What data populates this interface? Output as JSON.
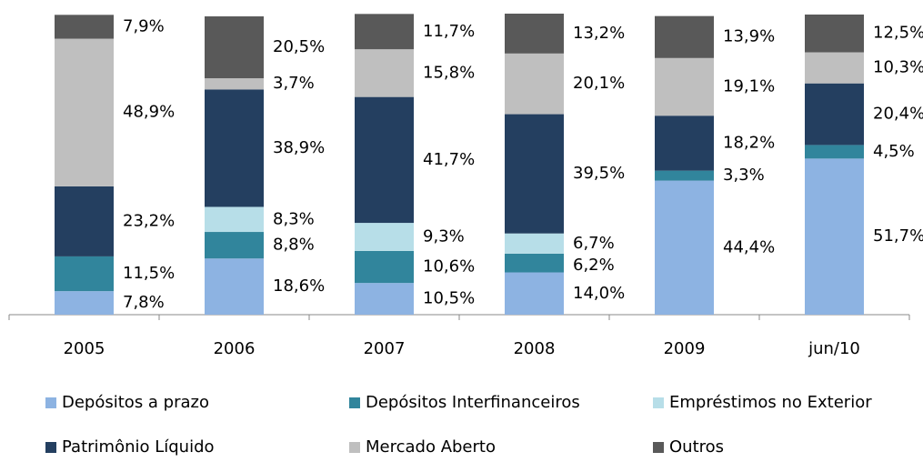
{
  "chart_data": {
    "type": "stacked-bar",
    "categories": [
      "2005",
      "2006",
      "2007",
      "2008",
      "2009",
      "jun/10"
    ],
    "ylim": [
      0,
      100
    ],
    "series": [
      {
        "name": "Depósitos a prazo",
        "color": "#8db3e2",
        "values": [
          7.8,
          18.6,
          10.5,
          14.0,
          44.4,
          51.7
        ],
        "value_labels": [
          "7,8%",
          "18,6%",
          "10,5%",
          "14,0%",
          "44,4%",
          "51,7%"
        ]
      },
      {
        "name": "Depósitos Interfinanceiros",
        "color": "#31859c",
        "values": [
          11.5,
          8.8,
          10.6,
          6.2,
          3.3,
          4.5
        ],
        "value_labels": [
          "11,5%",
          "8,8%",
          "10,6%",
          "6,2%",
          "3,3%",
          "4,5%"
        ]
      },
      {
        "name": "Empréstimos no Exterior",
        "color": "#b7dee8",
        "values": [
          null,
          8.3,
          9.3,
          6.7,
          null,
          null
        ],
        "value_labels": [
          null,
          "8,3%",
          "9,3%",
          "6,7%",
          null,
          null
        ]
      },
      {
        "name": "Patrimônio Líquido",
        "color": "#243f60",
        "values": [
          23.2,
          38.9,
          41.7,
          39.5,
          18.2,
          20.4
        ],
        "value_labels": [
          "23,2%",
          "38,9%",
          "41,7%",
          "39,5%",
          "18,2%",
          "20,4%"
        ]
      },
      {
        "name": "Mercado Aberto",
        "color": "#bfbfbf",
        "values": [
          48.9,
          3.7,
          15.8,
          20.1,
          19.1,
          10.3
        ],
        "value_labels": [
          "48,9%",
          "3,7%",
          "15,8%",
          "20,1%",
          "19,1%",
          "10,3%"
        ]
      },
      {
        "name": "Outros",
        "color": "#595959",
        "values": [
          7.9,
          20.5,
          11.7,
          13.2,
          13.9,
          12.5
        ],
        "value_labels": [
          "7,9%",
          "20,5%",
          "11,7%",
          "13,2%",
          "13,9%",
          "12,5%"
        ]
      }
    ]
  }
}
